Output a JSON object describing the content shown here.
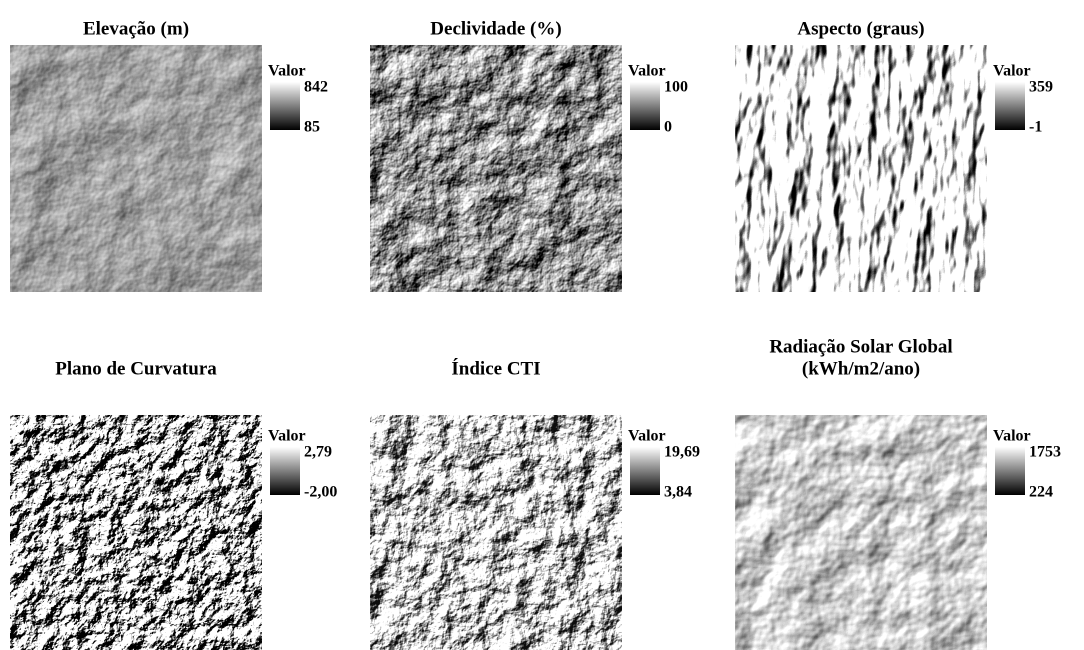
{
  "panels": [
    {
      "title": [
        "Elevação (m)"
      ],
      "legend": {
        "title": "Valor",
        "max": "842",
        "min": "85"
      }
    },
    {
      "title": [
        "Declividade (%)"
      ],
      "legend": {
        "title": "Valor",
        "max": "100",
        "min": "0"
      }
    },
    {
      "title": [
        "Aspecto (graus)"
      ],
      "legend": {
        "title": "Valor",
        "max": "359",
        "min": "-1"
      }
    },
    {
      "title": [
        "Plano de Curvatura"
      ],
      "legend": {
        "title": "Valor",
        "max": "2,79",
        "min": "-2,00"
      }
    },
    {
      "title": [
        "Índice CTI"
      ],
      "legend": {
        "title": "Valor",
        "max": "19,69",
        "min": "3,84"
      }
    },
    {
      "title": [
        "Radiação Solar Global",
        "(kWh/m2/ano)"
      ],
      "legend": {
        "title": "Valor",
        "max": "1753",
        "min": "224"
      }
    }
  ]
}
